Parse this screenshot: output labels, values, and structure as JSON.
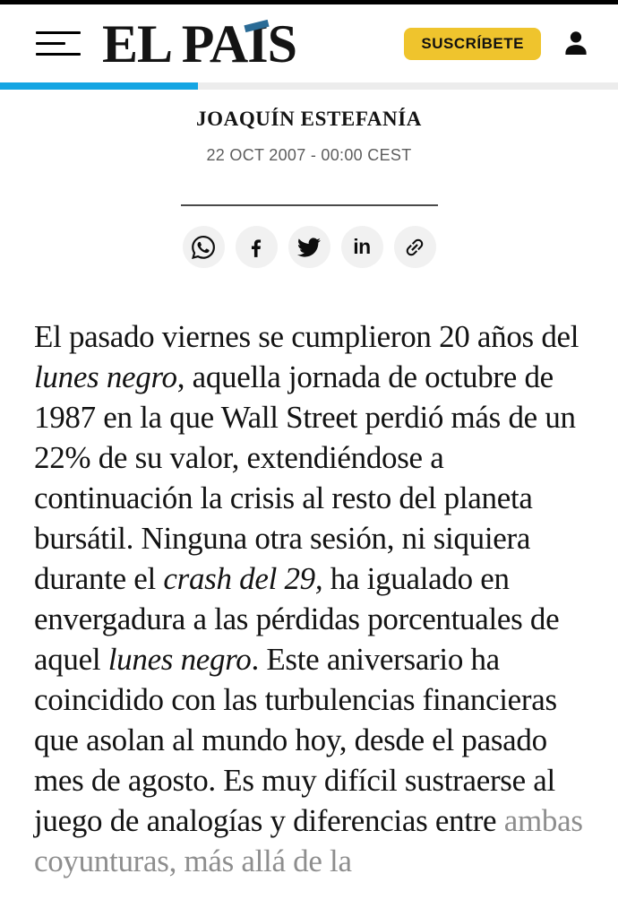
{
  "header": {
    "logo": {
      "full_text": "EL PAÍS",
      "part1": "EL PA",
      "accent_letter": "I",
      "part3": "S",
      "accent_color": "#2A6B96"
    },
    "subscribe_label": "SUSCRÍBETE",
    "subscribe_bg": "#EFC42D",
    "progress_percent": 32,
    "progress_color": "#14A5E3",
    "progress_track_color": "#ececec"
  },
  "article": {
    "author": "JOAQUÍN ESTEFANÍA",
    "date": "22 OCT 2007 - 00:00 CEST",
    "text_color": "#131313",
    "faded_color": "#8e8e8e",
    "segments": [
      {
        "text": "El pasado viernes se cumplieron 20 años del ",
        "style": "normal"
      },
      {
        "text": "lunes negro",
        "style": "italic"
      },
      {
        "text": ", aquella jornada de octubre de 1987 en la que Wall Street perdió más de un 22% de su valor, extendiéndose a continuación la crisis al resto del planeta bursátil. Ninguna otra sesión, ni siquiera durante el ",
        "style": "normal"
      },
      {
        "text": "crash del 29,",
        "style": "italic"
      },
      {
        "text": " ha igualado en envergadura a las pérdidas porcentuales de aquel ",
        "style": "normal"
      },
      {
        "text": "lunes negro",
        "style": "italic"
      },
      {
        "text": ". Este aniversario ha coincidido con las turbulencias financieras que asolan al mundo hoy, desde el pasado mes de agosto. Es muy difícil sustraerse al juego de analogías y diferencias entre ",
        "style": "normal"
      },
      {
        "text": "ambas coyunturas, más allá de la",
        "style": "faded"
      }
    ]
  },
  "share": {
    "icons": [
      {
        "name": "whatsapp"
      },
      {
        "name": "facebook"
      },
      {
        "name": "twitter"
      },
      {
        "name": "linkedin",
        "glyph": "in"
      },
      {
        "name": "copy-link"
      }
    ]
  }
}
